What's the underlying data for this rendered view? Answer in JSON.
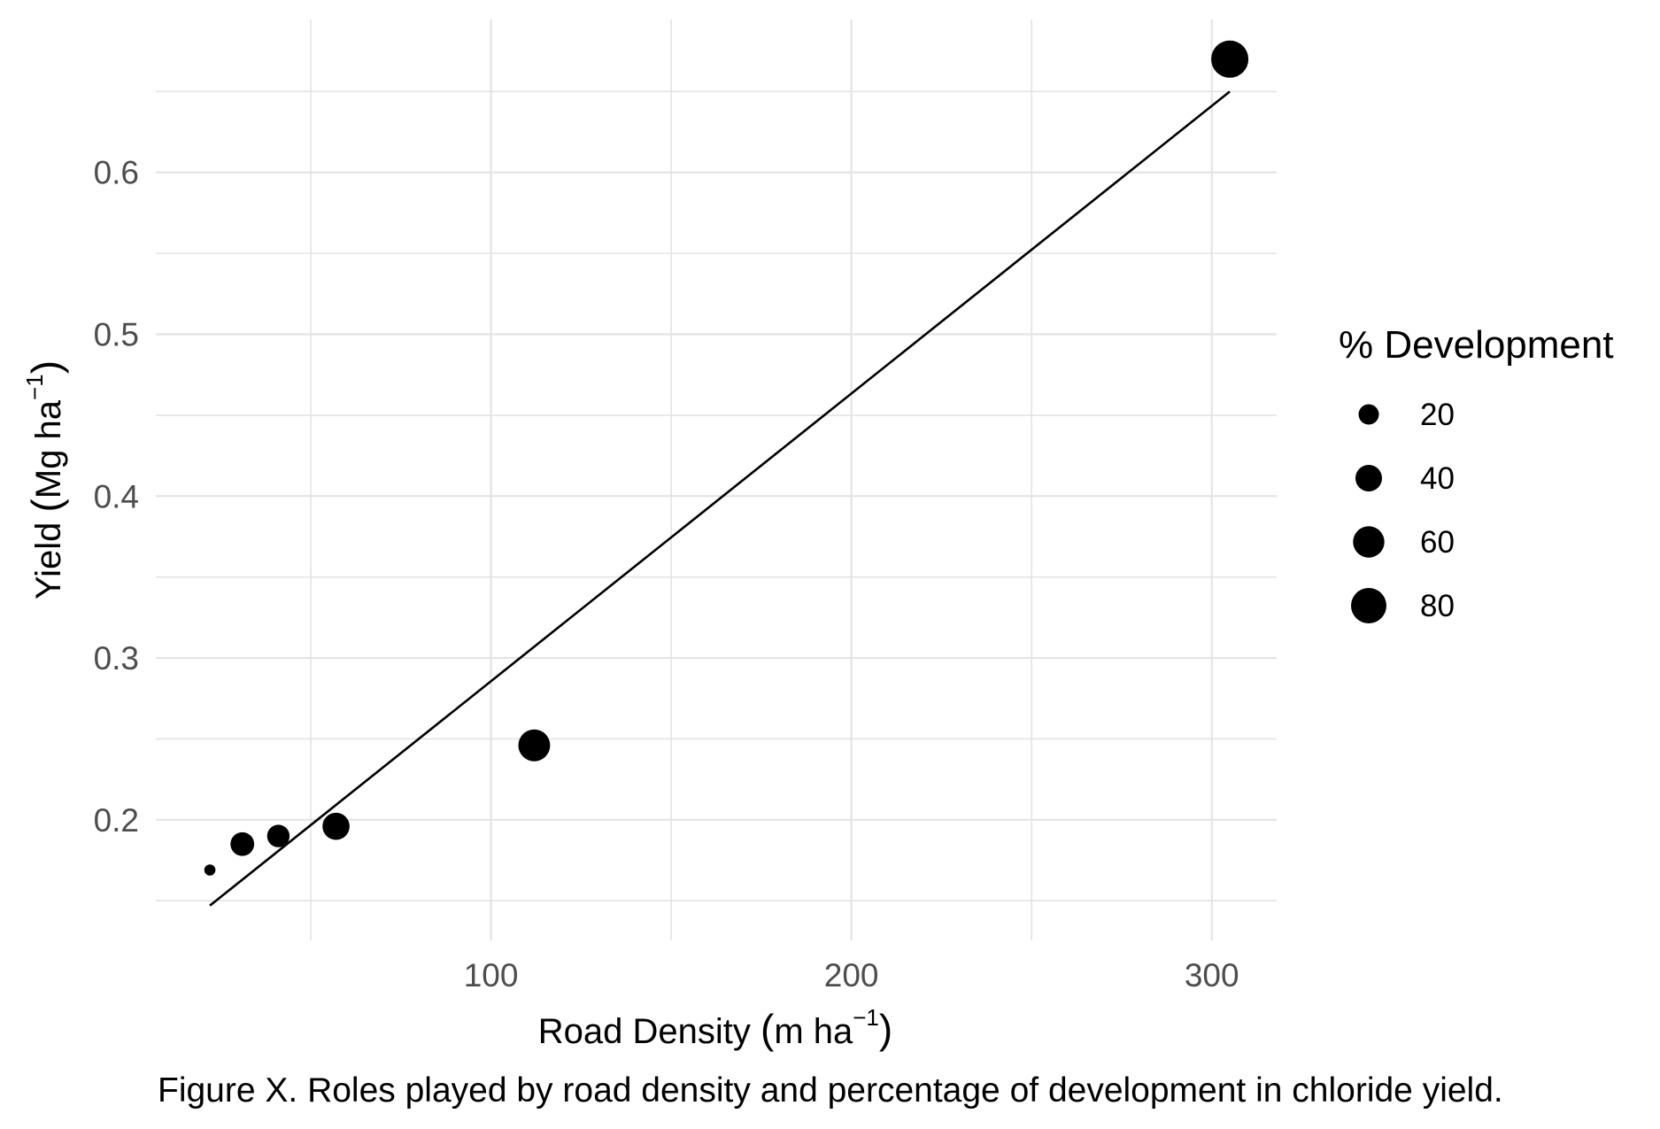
{
  "chart_data": {
    "type": "scatter",
    "title": "",
    "xlabel": {
      "main": "Road Density ",
      "unit_open": "(",
      "unit": "m ha",
      "unit_sup": "−1",
      "unit_close": ")"
    },
    "ylabel": {
      "main": "Yield ",
      "unit_open": "(",
      "unit": "Mg ha",
      "unit_sup": "−1",
      "unit_close": ")"
    },
    "xlim": [
      7,
      318
    ],
    "ylim": [
      0.1255,
      0.6945
    ],
    "x_ticks": [
      100,
      200,
      300
    ],
    "x_tick_labels": [
      "100",
      "200",
      "300"
    ],
    "x_minor_gridlines": [
      50,
      150,
      250
    ],
    "y_ticks": [
      0.2,
      0.3,
      0.4,
      0.5,
      0.6
    ],
    "y_tick_labels": [
      "0.2",
      "0.3",
      "0.4",
      "0.5",
      "0.6"
    ],
    "y_minor_gridlines": [
      0.15,
      0.25,
      0.35,
      0.45,
      0.55,
      0.65
    ],
    "grid": true,
    "points": [
      {
        "x": 22,
        "y": 0.169,
        "development": 3
      },
      {
        "x": 31,
        "y": 0.185,
        "development": 30
      },
      {
        "x": 41,
        "y": 0.19,
        "development": 26
      },
      {
        "x": 57,
        "y": 0.196,
        "development": 42
      },
      {
        "x": 112,
        "y": 0.246,
        "development": 62
      },
      {
        "x": 305,
        "y": 0.67,
        "development": 90
      }
    ],
    "trend_line": {
      "x": [
        22,
        305
      ],
      "y": [
        0.147,
        0.65
      ]
    },
    "legend": {
      "title": "% Development",
      "placement": "right",
      "entries": [
        {
          "label": "20",
          "value": 20
        },
        {
          "label": "40",
          "value": 40
        },
        {
          "label": "60",
          "value": 60
        },
        {
          "label": "80",
          "value": 80
        }
      ]
    },
    "colors": {
      "points": "#000000",
      "line": "#000000",
      "grid": "#e4e4e4",
      "tick_labels": "#4d4d4d"
    }
  },
  "caption": "Figure X. Roles played by road density and percentage of development in chloride yield."
}
